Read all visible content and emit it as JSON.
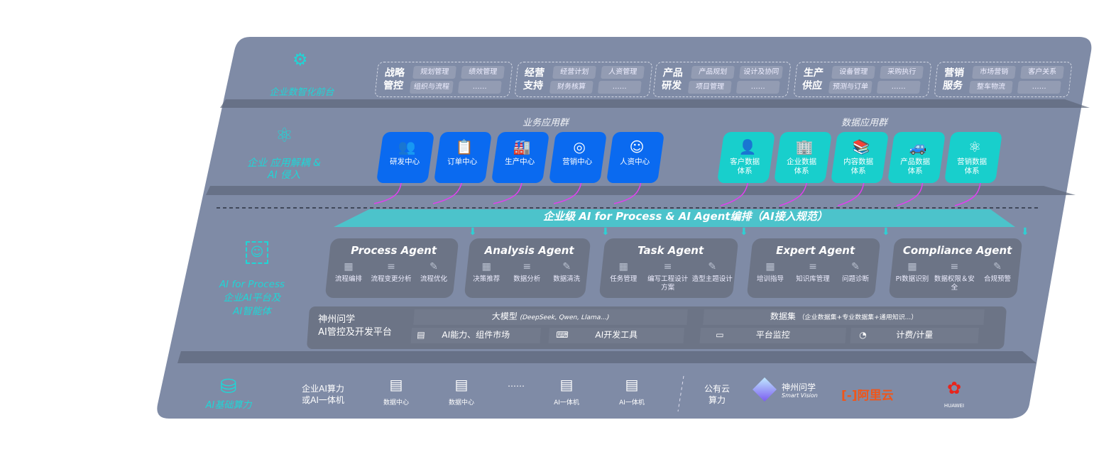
{
  "colors": {
    "board": "#7f8ba6",
    "accent_teal": "#1fd6d6",
    "business_tile": "#0a6af0",
    "data_tile": "#18cfcc",
    "connector": "#e040f0",
    "agent_box": "#6c7486"
  },
  "front": {
    "label": "企业数智化前台",
    "icon": "brain-head-icon",
    "groups": [
      {
        "title": "战略管控",
        "items": [
          "规划管理",
          "绩效管理",
          "组织与流程",
          "……"
        ]
      },
      {
        "title": "经营支持",
        "items": [
          "经营计划",
          "人资管理",
          "财务核算",
          "……"
        ]
      },
      {
        "title": "产品研发",
        "items": [
          "产品规划",
          "设计及协同",
          "项目管理",
          "……"
        ]
      },
      {
        "title": "生产供应",
        "items": [
          "设备管理",
          "采购执行",
          "预测与订单",
          "……"
        ]
      },
      {
        "title": "营销服务",
        "items": [
          "市场营销",
          "客户关系",
          "整车物流",
          "……"
        ]
      }
    ]
  },
  "apps": {
    "label": "企业 应用解耦 & AI 侵入",
    "icon": "molecule-icon",
    "business_title": "业务应用群",
    "business": [
      {
        "label": "研发中心",
        "icon": "users-icon"
      },
      {
        "label": "订单中心",
        "icon": "clipboard-icon"
      },
      {
        "label": "生产中心",
        "icon": "factory-icon"
      },
      {
        "label": "营销中心",
        "icon": "target-icon"
      },
      {
        "label": "人资中心",
        "icon": "person-icon"
      }
    ],
    "data_title": "数据应用群",
    "data": [
      {
        "label": "客户数据体系",
        "icon": "user-icon"
      },
      {
        "label": "企业数据体系",
        "icon": "building-icon"
      },
      {
        "label": "内容数据体系",
        "icon": "books-icon"
      },
      {
        "label": "产品数据体系",
        "icon": "car-icon"
      },
      {
        "label": "营销数据体系",
        "icon": "atom-icon"
      }
    ]
  },
  "orchestration": {
    "label": "企业级 AI for Process & AI Agent编排（AI接入规范）"
  },
  "platform": {
    "label_line1": "AI for Process",
    "label_line2": "企业AI平台及",
    "label_line3": "AI智能体",
    "icon": "face-scan-icon",
    "agents": [
      {
        "name": "Process Agent",
        "items": [
          "流程编排",
          "流程变更分析",
          "流程优化"
        ]
      },
      {
        "name": "Analysis Agent",
        "items": [
          "决策推荐",
          "数据分析",
          "数据清洗"
        ]
      },
      {
        "name": "Task Agent",
        "items": [
          "任务管理",
          "编写工程设计方案",
          "造型主题设计"
        ]
      },
      {
        "name": "Expert Agent",
        "items": [
          "培训指导",
          "知识库管理",
          "问题诊断"
        ]
      },
      {
        "name": "Compliance Agent",
        "items": [
          "PI数据识别",
          "数据权限＆安全",
          "合规预警"
        ]
      }
    ],
    "base_title_1": "神州问学",
    "base_title_2": "AI管控及开发平台",
    "model_title": "大模型",
    "model_note": "(DeepSeek, Qwen, Llama...)",
    "dataset_title": "数据集",
    "dataset_note": "（企业数据集+专业数据集+通用知识...）",
    "tools": [
      {
        "label": "AI能力、组件市场",
        "icon": "market-icon"
      },
      {
        "label": "AI开发工具",
        "icon": "dev-tool-icon"
      },
      {
        "label": "平台监控",
        "icon": "monitor-icon"
      },
      {
        "label": "计费/计量",
        "icon": "gauge-icon"
      }
    ]
  },
  "compute": {
    "label": "AI基础算力",
    "icon": "database-icon",
    "private_label_1": "企业AI算力",
    "private_label_2": "或AI一体机",
    "servers": [
      "数据中心",
      "数据中心",
      "AI一体机",
      "AI一体机"
    ],
    "ellipsis": "……",
    "public_label_1": "公有云",
    "public_label_2": "算力",
    "vendors": [
      {
        "name": "神州问学",
        "sub": "Smart Vision"
      },
      {
        "name": "阿里云"
      },
      {
        "name": "HUAWEI"
      }
    ]
  }
}
